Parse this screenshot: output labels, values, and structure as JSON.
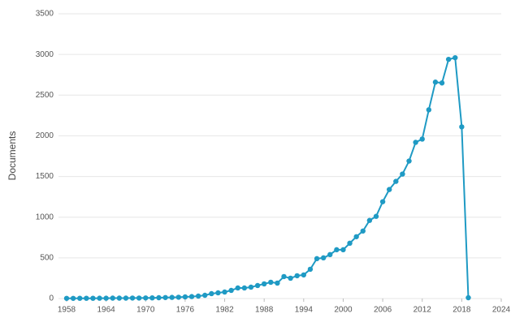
{
  "chart_data": {
    "type": "line",
    "y_label": "Documents",
    "x": [
      1958,
      1959,
      1960,
      1961,
      1962,
      1963,
      1964,
      1965,
      1966,
      1967,
      1968,
      1969,
      1970,
      1971,
      1972,
      1973,
      1974,
      1975,
      1976,
      1977,
      1978,
      1979,
      1980,
      1981,
      1982,
      1983,
      1984,
      1985,
      1986,
      1987,
      1988,
      1989,
      1990,
      1991,
      1992,
      1993,
      1994,
      1995,
      1996,
      1997,
      1998,
      1999,
      2000,
      2001,
      2002,
      2003,
      2004,
      2005,
      2006,
      2007,
      2008,
      2009,
      2010,
      2011,
      2012,
      2013,
      2014,
      2015,
      2016,
      2017,
      2018,
      2019
    ],
    "series": [
      {
        "name": "Documents",
        "color": "#1f9ac4",
        "values": [
          2,
          2,
          3,
          3,
          3,
          4,
          4,
          5,
          5,
          5,
          6,
          6,
          7,
          8,
          10,
          12,
          14,
          16,
          20,
          24,
          30,
          40,
          60,
          70,
          80,
          100,
          130,
          130,
          140,
          160,
          180,
          200,
          190,
          270,
          250,
          280,
          290,
          360,
          490,
          500,
          540,
          600,
          600,
          680,
          760,
          830,
          960,
          1010,
          1190,
          1340,
          1440,
          1530,
          1690,
          1920,
          1960,
          2320,
          2660,
          2650,
          2940,
          2960,
          2110,
          10
        ]
      }
    ],
    "xlim": [
      1958,
      2024
    ],
    "xticks": [
      1958,
      1964,
      1970,
      1976,
      1982,
      1988,
      1994,
      2000,
      2006,
      2012,
      2018,
      2024
    ],
    "ylim": [
      0,
      3500
    ],
    "yticks": [
      0,
      500,
      1000,
      1500,
      2000,
      2500,
      3000,
      3500
    ],
    "grid": true
  }
}
